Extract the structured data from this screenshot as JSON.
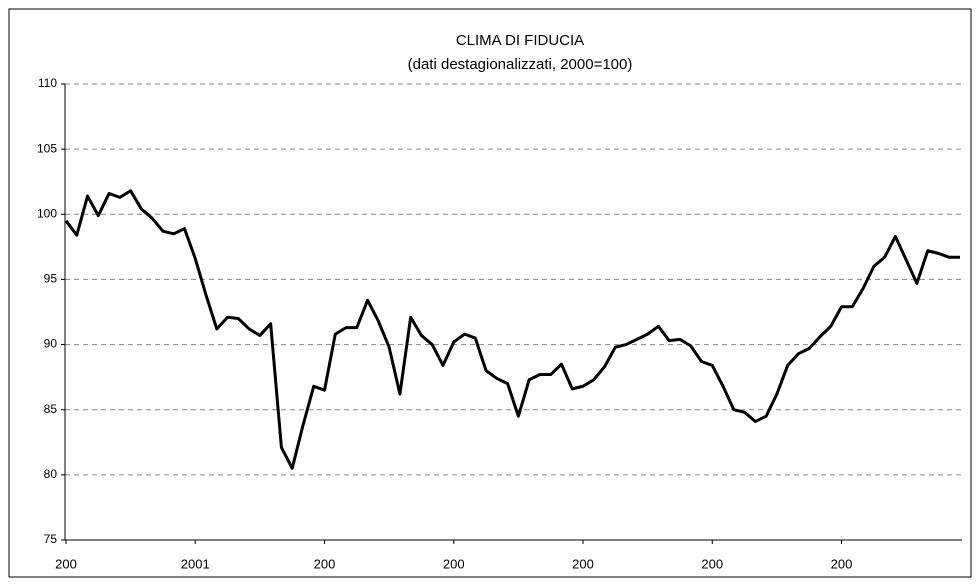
{
  "chart_data": {
    "type": "line",
    "title": "CLIMA DI FIDUCIA",
    "subtitle": "(dati destagionalizzati, 2000=100)",
    "categories": [
      "200",
      null,
      null,
      null,
      null,
      null,
      null,
      null,
      null,
      null,
      null,
      null,
      "2001",
      null,
      null,
      null,
      null,
      null,
      null,
      null,
      null,
      null,
      null,
      null,
      "200",
      null,
      null,
      null,
      null,
      null,
      null,
      null,
      null,
      null,
      null,
      null,
      "200",
      null,
      null,
      null,
      null,
      null,
      null,
      null,
      null,
      null,
      null,
      null,
      "200",
      null,
      null,
      null,
      null,
      null,
      null,
      null,
      null,
      null,
      null,
      null,
      "200",
      null,
      null,
      null,
      null,
      null,
      null,
      null,
      null,
      null,
      null,
      null,
      "200",
      null,
      null,
      null,
      null,
      null,
      null,
      null,
      null,
      null,
      null,
      null
    ],
    "series": [
      {
        "name": "Clima di fiducia",
        "color": "#000000",
        "values": [
          99.5,
          98.4,
          101.4,
          99.9,
          101.6,
          101.3,
          101.8,
          100.4,
          99.7,
          98.7,
          98.5,
          98.9,
          96.6,
          93.8,
          91.2,
          92.1,
          92.0,
          91.2,
          90.7,
          91.6,
          82.1,
          80.5,
          83.8,
          86.8,
          86.5,
          90.8,
          91.3,
          91.3,
          93.4,
          91.8,
          89.8,
          86.2,
          92.1,
          90.7,
          90.0,
          88.4,
          90.2,
          90.8,
          90.5,
          88.0,
          87.4,
          87.0,
          84.5,
          87.3,
          87.7,
          87.7,
          88.5,
          86.6,
          86.8,
          87.3,
          88.3,
          89.8,
          90.0,
          90.4,
          90.8,
          91.4,
          90.3,
          90.4,
          89.9,
          88.7,
          88.4,
          86.8,
          85.0,
          84.8,
          84.1,
          84.5,
          86.2,
          88.4,
          89.3,
          89.7,
          90.6,
          91.4,
          92.9,
          92.9,
          94.3,
          96.0,
          96.7,
          98.3,
          96.5,
          94.7,
          97.2,
          97.0,
          96.7,
          96.7
        ]
      }
    ],
    "ylim": [
      75,
      110
    ],
    "yticks": [
      75,
      80,
      85,
      90,
      95,
      100,
      105,
      110
    ],
    "grid": true
  }
}
